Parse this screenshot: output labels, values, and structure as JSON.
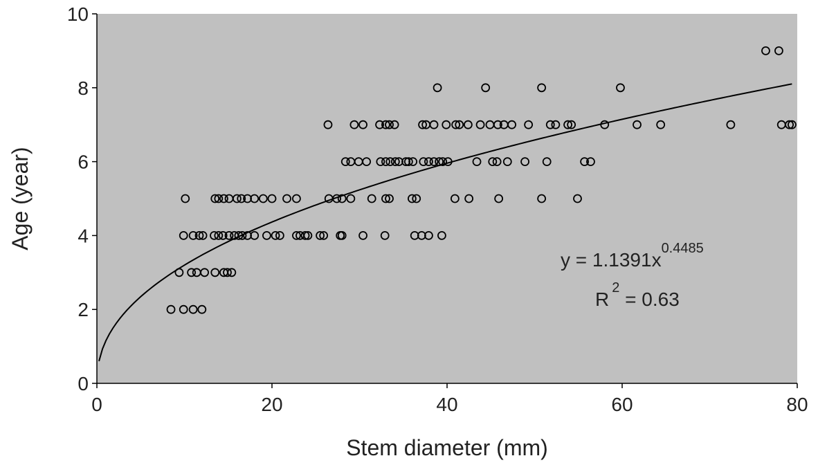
{
  "chart_data": {
    "type": "scatter",
    "x_label": "Stem diameter (mm)",
    "y_label": "Age (year)",
    "xlim": [
      0,
      80
    ],
    "xticks": [
      0,
      20,
      40,
      60,
      80
    ],
    "ylim": [
      0,
      10
    ],
    "yticks": [
      0,
      2,
      4,
      6,
      8,
      10
    ],
    "background": "#c0c0c0",
    "color": "#000000",
    "x": [
      8.46,
      9.9,
      11.0,
      12.0,
      9.4,
      10.8,
      11.4,
      12.3,
      13.5,
      14.5,
      14.9,
      15.4,
      9.9,
      11.0,
      11.7,
      12.1,
      13.4,
      13.9,
      14.4,
      15.1,
      15.7,
      16.2,
      16.6,
      17.2,
      18.0,
      19.4,
      20.4,
      20.9,
      22.8,
      23.2,
      23.8,
      24.1,
      25.5,
      25.9,
      27.8,
      28.0,
      30.4,
      32.9,
      36.3,
      37.1,
      37.9,
      39.4,
      10.1,
      13.5,
      13.9,
      14.5,
      15.1,
      16.0,
      16.5,
      17.2,
      18.0,
      19.0,
      20.0,
      21.7,
      22.8,
      26.5,
      27.4,
      28.0,
      29.0,
      31.4,
      33.0,
      33.4,
      36.0,
      36.5,
      40.9,
      42.5,
      45.9,
      50.8,
      54.9,
      28.4,
      29.0,
      29.9,
      30.8,
      32.4,
      33.0,
      33.5,
      34.1,
      34.5,
      35.3,
      35.6,
      36.1,
      37.3,
      37.9,
      38.5,
      39.1,
      39.5,
      40.1,
      43.4,
      45.2,
      45.7,
      46.9,
      48.9,
      51.4,
      55.7,
      56.4,
      26.4,
      29.4,
      30.4,
      32.3,
      33.0,
      33.4,
      34.0,
      37.2,
      37.6,
      38.5,
      39.9,
      41.0,
      41.4,
      42.4,
      43.8,
      44.9,
      45.8,
      46.5,
      47.4,
      49.3,
      51.8,
      52.4,
      53.8,
      54.2,
      58.0,
      61.7,
      64.4,
      72.4,
      78.2,
      79.1,
      79.4,
      38.9,
      44.4,
      50.8,
      59.8,
      76.4,
      77.9
    ],
    "values": [
      2,
      2,
      2,
      2,
      3,
      3,
      3,
      3,
      3,
      3,
      3,
      3,
      4,
      4,
      4,
      4,
      4,
      4,
      4,
      4,
      4,
      4,
      4,
      4,
      4,
      4,
      4,
      4,
      4,
      4,
      4,
      4,
      4,
      4,
      4,
      4,
      4,
      4,
      4,
      4,
      4,
      4,
      5,
      5,
      5,
      5,
      5,
      5,
      5,
      5,
      5,
      5,
      5,
      5,
      5,
      5,
      5,
      5,
      5,
      5,
      5,
      5,
      5,
      5,
      5,
      5,
      5,
      5,
      5,
      6,
      6,
      6,
      6,
      6,
      6,
      6,
      6,
      6,
      6,
      6,
      6,
      6,
      6,
      6,
      6,
      6,
      6,
      6,
      6,
      6,
      6,
      6,
      6,
      6,
      6,
      7,
      7,
      7,
      7,
      7,
      7,
      7,
      7,
      7,
      7,
      7,
      7,
      7,
      7,
      7,
      7,
      7,
      7,
      7,
      7,
      7,
      7,
      7,
      7,
      7,
      7,
      7,
      7,
      7,
      7,
      7,
      8,
      8,
      8,
      8,
      9,
      9
    ],
    "fit": {
      "range": [
        0.24,
        79.4
      ],
      "equation": {
        "prefix": "y = ",
        "coefficient": 1.1391,
        "variable": "x",
        "exponent": 0.4485
      },
      "r2": {
        "symbol": "R",
        "power": 2,
        "equals": " = ",
        "value": 0.63
      }
    }
  }
}
